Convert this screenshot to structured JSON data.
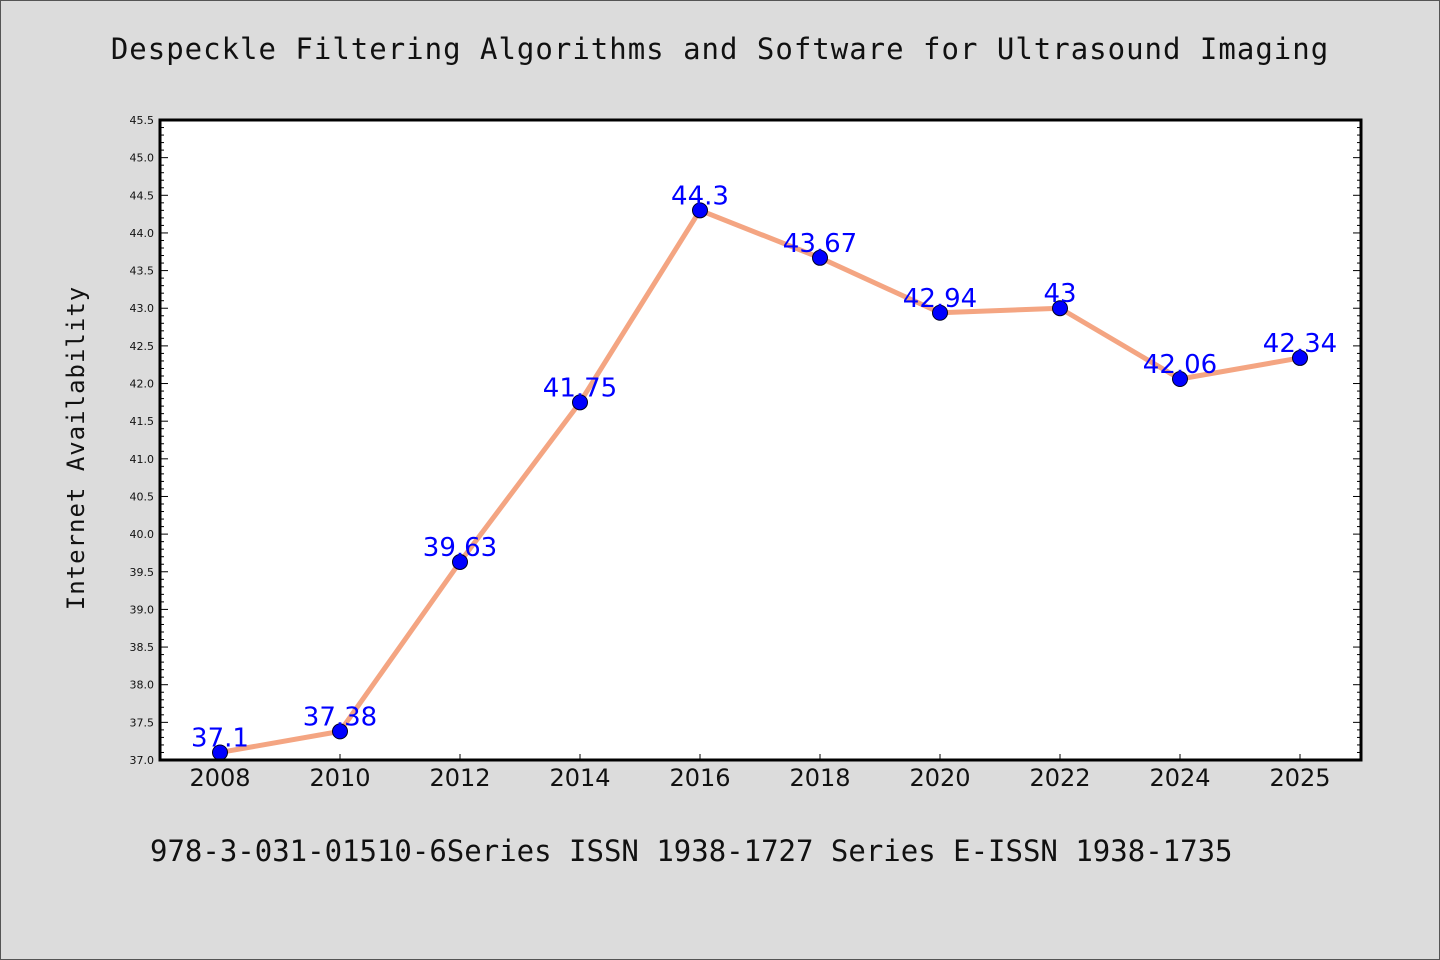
{
  "chart_data": {
    "type": "line",
    "title": "Despeckle Filtering Algorithms and Software for Ultrasound Imaging",
    "xlabel": "",
    "ylabel": "Internet Availability",
    "footer": "978-3-031-01510-6Series ISSN 1938-1727 Series E-ISSN 1938-1735",
    "categories": [
      "2008",
      "2010",
      "2012",
      "2014",
      "2016",
      "2018",
      "2020",
      "2022",
      "2024",
      "2025"
    ],
    "series": [
      {
        "values": [
          37.1,
          37.38,
          39.63,
          41.75,
          44.3,
          43.67,
          42.94,
          43,
          42.06,
          42.34
        ]
      }
    ],
    "data_labels": [
      "37.1",
      "37.38",
      "39.63",
      "41.75",
      "44.3",
      "43.67",
      "42.94",
      "43",
      "42.06",
      "42.34"
    ],
    "ylim": [
      37.0,
      45.5
    ],
    "yticks": [
      "37.0",
      "37.5",
      "38.0",
      "38.5",
      "39.0",
      "39.5",
      "40.0",
      "40.5",
      "41.0",
      "41.5",
      "42.0",
      "42.5",
      "43.0",
      "43.5",
      "44.0",
      "44.5",
      "45.0",
      "45.5"
    ],
    "grid": false,
    "colors": {
      "line": "#f4a582",
      "marker": "#0000ff",
      "label": "#0000ff",
      "background": "#dcdcdc",
      "plot_background": "#ffffff"
    }
  }
}
